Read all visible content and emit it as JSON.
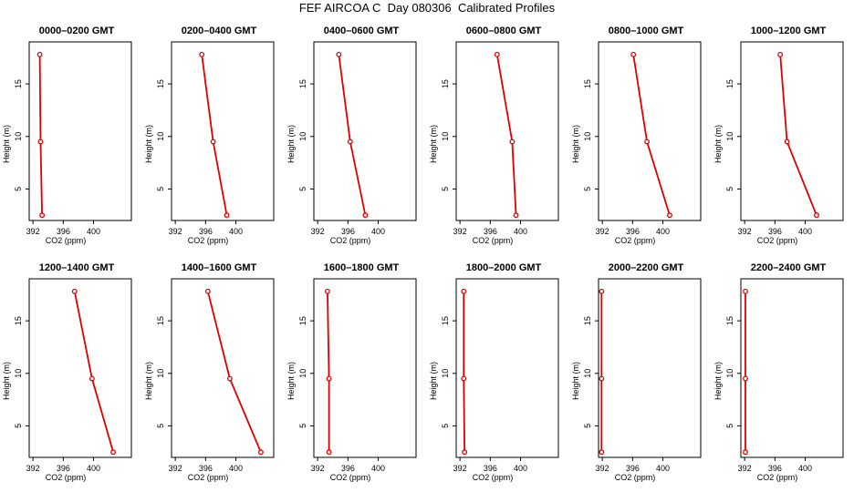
{
  "title": "FEF AIRCOA C  Day 080306  Calibrated Profiles",
  "chart_data": [
    {
      "type": "line",
      "title": "0000–0200 GMT",
      "xlabel": "CO2 (ppm)",
      "ylabel": "Height (m)",
      "xlim": [
        391.5,
        405
      ],
      "ylim": [
        2,
        19
      ],
      "xticks": [
        "392",
        "396",
        "400"
      ],
      "yticks": [
        "5",
        "10",
        "15"
      ],
      "grid": false,
      "color": "#dd0000",
      "series": [
        {
          "x": [
            392.9,
            393.0,
            393.2
          ],
          "y": [
            17.8,
            9.5,
            2.5
          ]
        }
      ]
    },
    {
      "type": "line",
      "title": "0200–0400 GMT",
      "xlabel": "CO2 (ppm)",
      "ylabel": "Height (m)",
      "xlim": [
        391.5,
        405
      ],
      "ylim": [
        2,
        19
      ],
      "xticks": [
        "392",
        "396",
        "400"
      ],
      "yticks": [
        "5",
        "10",
        "15"
      ],
      "grid": false,
      "color": "#dd0000",
      "series": [
        {
          "x": [
            395.5,
            397.0,
            398.8
          ],
          "y": [
            17.8,
            9.5,
            2.5
          ]
        }
      ]
    },
    {
      "type": "line",
      "title": "0400–0600 GMT",
      "xlabel": "CO2 (ppm)",
      "ylabel": "Height (m)",
      "xlim": [
        391.5,
        405
      ],
      "ylim": [
        2,
        19
      ],
      "xticks": [
        "392",
        "396",
        "400"
      ],
      "yticks": [
        "5",
        "10",
        "15"
      ],
      "grid": false,
      "color": "#dd0000",
      "series": [
        {
          "x": [
            394.8,
            396.3,
            398.3
          ],
          "y": [
            17.8,
            9.5,
            2.5
          ]
        }
      ]
    },
    {
      "type": "line",
      "title": "0600–0800 GMT",
      "xlabel": "CO2 (ppm)",
      "ylabel": "Height (m)",
      "xlim": [
        391.5,
        405
      ],
      "ylim": [
        2,
        19
      ],
      "xticks": [
        "392",
        "396",
        "400"
      ],
      "yticks": [
        "5",
        "10",
        "15"
      ],
      "grid": false,
      "color": "#dd0000",
      "series": [
        {
          "x": [
            396.9,
            398.9,
            399.4
          ],
          "y": [
            17.8,
            9.5,
            2.5
          ]
        }
      ]
    },
    {
      "type": "line",
      "title": "0800–1000 GMT",
      "xlabel": "CO2 (ppm)",
      "ylabel": "Height (m)",
      "xlim": [
        391.5,
        405
      ],
      "ylim": [
        2,
        19
      ],
      "xticks": [
        "392",
        "396",
        "400"
      ],
      "yticks": [
        "5",
        "10",
        "15"
      ],
      "grid": false,
      "color": "#dd0000",
      "series": [
        {
          "x": [
            396.1,
            397.9,
            400.9
          ],
          "y": [
            17.8,
            9.5,
            2.5
          ]
        }
      ]
    },
    {
      "type": "line",
      "title": "1000–1200 GMT",
      "xlabel": "CO2 (ppm)",
      "ylabel": "Height (m)",
      "xlim": [
        391.5,
        405
      ],
      "ylim": [
        2,
        19
      ],
      "xticks": [
        "392",
        "396",
        "400"
      ],
      "yticks": [
        "5",
        "10",
        "15"
      ],
      "grid": false,
      "color": "#dd0000",
      "series": [
        {
          "x": [
            396.7,
            397.6,
            401.5
          ],
          "y": [
            17.8,
            9.5,
            2.5
          ]
        }
      ]
    },
    {
      "type": "line",
      "title": "1200–1400 GMT",
      "xlabel": "CO2 (ppm)",
      "ylabel": "Height (m)",
      "xlim": [
        391.5,
        405
      ],
      "ylim": [
        2,
        19
      ],
      "xticks": [
        "392",
        "396",
        "400"
      ],
      "yticks": [
        "5",
        "10",
        "15"
      ],
      "grid": false,
      "color": "#dd0000",
      "series": [
        {
          "x": [
            397.5,
            399.8,
            402.6
          ],
          "y": [
            17.8,
            9.5,
            2.5
          ]
        }
      ]
    },
    {
      "type": "line",
      "title": "1400–1600 GMT",
      "xlabel": "CO2 (ppm)",
      "ylabel": "Height (m)",
      "xlim": [
        391.5,
        405
      ],
      "ylim": [
        2,
        19
      ],
      "xticks": [
        "392",
        "396",
        "400"
      ],
      "yticks": [
        "5",
        "10",
        "15"
      ],
      "grid": false,
      "color": "#dd0000",
      "series": [
        {
          "x": [
            396.3,
            399.2,
            403.3
          ],
          "y": [
            17.8,
            9.5,
            2.5
          ]
        }
      ]
    },
    {
      "type": "line",
      "title": "1600–1800 GMT",
      "xlabel": "CO2 (ppm)",
      "ylabel": "Height (m)",
      "xlim": [
        391.5,
        405
      ],
      "ylim": [
        2,
        19
      ],
      "xticks": [
        "392",
        "396",
        "400"
      ],
      "yticks": [
        "5",
        "10",
        "15"
      ],
      "grid": false,
      "color": "#dd0000",
      "series": [
        {
          "x": [
            393.3,
            393.5,
            393.5
          ],
          "y": [
            17.8,
            9.5,
            2.5
          ]
        }
      ]
    },
    {
      "type": "line",
      "title": "1800–2000 GMT",
      "xlabel": "CO2 (ppm)",
      "ylabel": "Height (m)",
      "xlim": [
        391.5,
        405
      ],
      "ylim": [
        2,
        19
      ],
      "xticks": [
        "392",
        "396",
        "400"
      ],
      "yticks": [
        "5",
        "10",
        "15"
      ],
      "grid": false,
      "color": "#dd0000",
      "series": [
        {
          "x": [
            392.5,
            392.5,
            392.6
          ],
          "y": [
            17.8,
            9.5,
            2.5
          ]
        }
      ]
    },
    {
      "type": "line",
      "title": "2000–2200 GMT",
      "xlabel": "CO2 (ppm)",
      "ylabel": "Height (m)",
      "xlim": [
        391.5,
        405
      ],
      "ylim": [
        2,
        19
      ],
      "xticks": [
        "392",
        "396",
        "400"
      ],
      "yticks": [
        "5",
        "10",
        "15"
      ],
      "grid": false,
      "color": "#dd0000",
      "series": [
        {
          "x": [
            391.9,
            391.9,
            391.9
          ],
          "y": [
            17.8,
            9.5,
            2.5
          ]
        }
      ]
    },
    {
      "type": "line",
      "title": "2200–2400 GMT",
      "xlabel": "CO2 (ppm)",
      "ylabel": "Height (m)",
      "xlim": [
        391.5,
        405
      ],
      "ylim": [
        2,
        19
      ],
      "xticks": [
        "392",
        "396",
        "400"
      ],
      "yticks": [
        "5",
        "10",
        "15"
      ],
      "grid": false,
      "color": "#dd0000",
      "series": [
        {
          "x": [
            392.1,
            392.1,
            392.1
          ],
          "y": [
            17.8,
            9.5,
            2.5
          ]
        }
      ]
    }
  ]
}
